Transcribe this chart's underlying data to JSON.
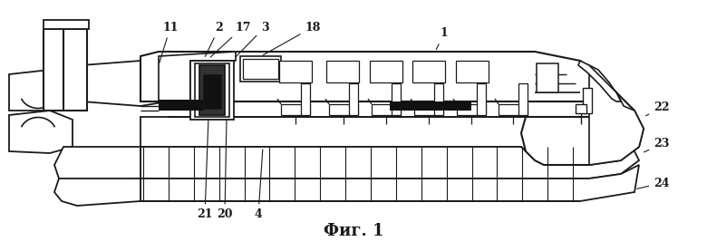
{
  "title": "Фиг. 1",
  "title_fontsize": 13,
  "background_color": "#ffffff",
  "line_color": "#1a1a1a",
  "figsize": [
    7.8,
    2.77
  ],
  "dpi": 100
}
